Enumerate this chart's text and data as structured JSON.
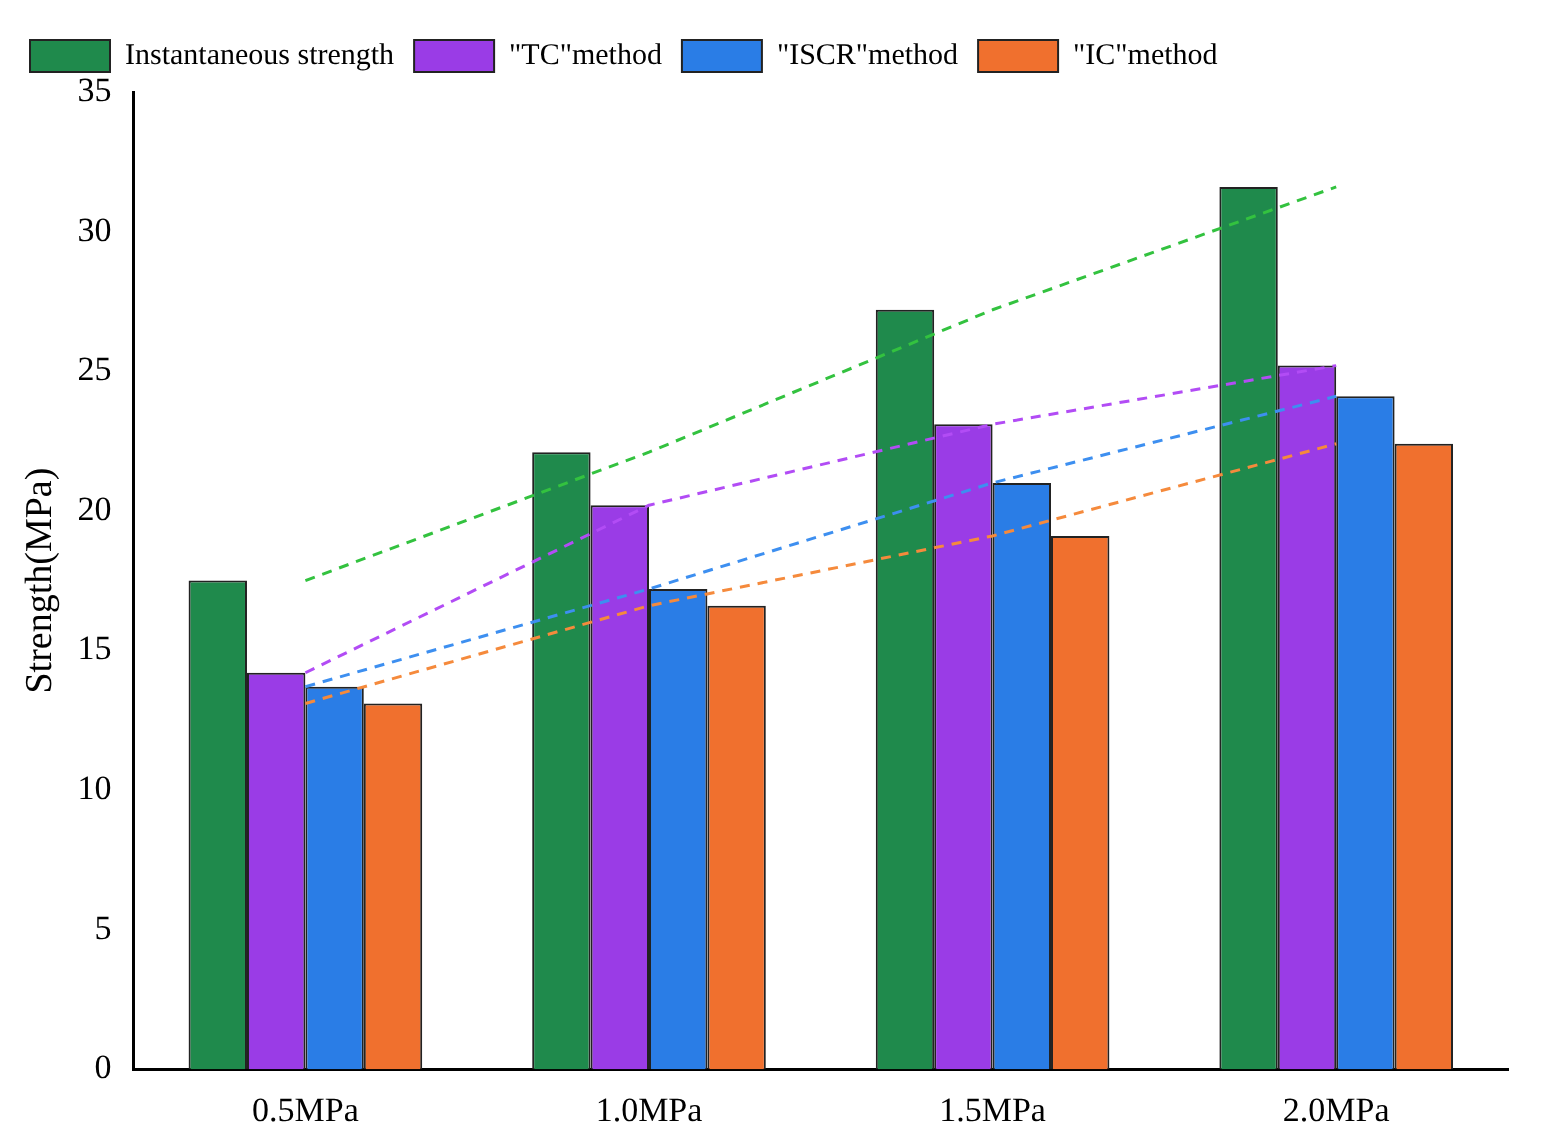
{
  "chart_data": {
    "type": "bar",
    "ylabel": "Strength(MPa)",
    "categories": [
      "0.5MPa",
      "1.0MPa",
      "1.5MPa",
      "2.0MPa"
    ],
    "series": [
      {
        "name": "Instantaneous strength",
        "color": "#1f8a4c",
        "values": [
          17.5,
          22.1,
          27.2,
          31.6
        ]
      },
      {
        "name": "\"TC\"method",
        "color": "#9a3ce6",
        "values": [
          14.2,
          20.2,
          23.1,
          25.2
        ]
      },
      {
        "name": "\"ISCR\"method",
        "color": "#2a7de6",
        "values": [
          13.7,
          17.2,
          21.0,
          24.1
        ]
      },
      {
        "name": "\"IC\"method",
        "color": "#f0702e",
        "values": [
          13.1,
          16.6,
          19.1,
          22.4
        ]
      },
      {
        "type": "line",
        "color": "#33c23f",
        "line_style": "dashed",
        "values": [
          17.5,
          22.1,
          27.2,
          31.6
        ]
      },
      {
        "type": "line",
        "color": "#b24cf5",
        "line_style": "dashed",
        "values": [
          14.2,
          20.2,
          23.1,
          25.2
        ]
      },
      {
        "type": "line",
        "color": "#3d8ff0",
        "line_style": "dashed",
        "values": [
          13.7,
          17.2,
          21.0,
          24.1
        ]
      },
      {
        "type": "line",
        "color": "#f58a3c",
        "line_style": "dashed",
        "values": [
          13.1,
          16.6,
          19.1,
          22.4
        ]
      }
    ],
    "ylim": [
      0,
      35
    ],
    "yticks": [
      0,
      5,
      10,
      15,
      20,
      25,
      30,
      35
    ],
    "grid": false,
    "legend": "top left",
    "marker": "none"
  }
}
